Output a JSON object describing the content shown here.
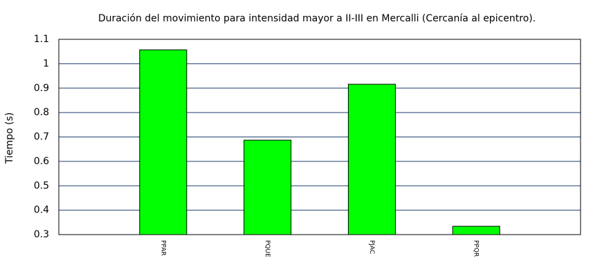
{
  "chart_data": {
    "type": "bar",
    "title": "Duración del movimiento para intensidad mayor a II-III en Mercalli (Cercanía al epicentro).",
    "y_label": "Tiempo (s)",
    "categories": [
      "PPAR",
      "PQUE",
      "PJAC",
      "PPQR"
    ],
    "values": [
      1.057,
      0.687,
      0.916,
      0.334
    ],
    "color": "#00ff00",
    "ylim": [
      0.3,
      1.1
    ],
    "yticks": [
      0.3,
      0.4,
      0.5,
      0.6,
      0.7,
      0.8,
      0.9,
      1,
      1.1
    ],
    "grid": true
  }
}
